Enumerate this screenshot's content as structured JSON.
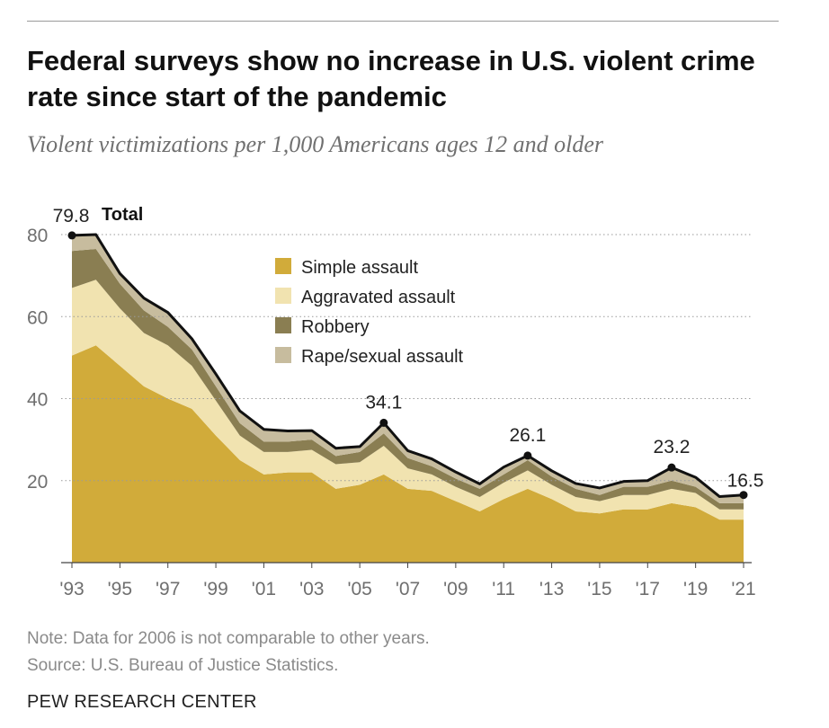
{
  "title": "Federal surveys show no increase in U.S. violent crime rate since start of the pandemic",
  "subtitle": "Violent victimizations per 1,000 Americans ages 12 and older",
  "note": "Note: Data for 2006 is not comparable to other years.",
  "source": "Source: U.S. Bureau of Justice Statistics.",
  "brand": "PEW RESEARCH CENTER",
  "chart_data": {
    "type": "area",
    "stacked": true,
    "x": [
      1993,
      1994,
      1995,
      1996,
      1997,
      1998,
      1999,
      2000,
      2001,
      2002,
      2003,
      2004,
      2005,
      2006,
      2007,
      2008,
      2009,
      2010,
      2011,
      2012,
      2013,
      2014,
      2015,
      2016,
      2017,
      2018,
      2019,
      2020,
      2021
    ],
    "tick_labels": [
      "'93",
      "'95",
      "'97",
      "'99",
      "'01",
      "'03",
      "'05",
      "'07",
      "'09",
      "'11",
      "'13",
      "'15",
      "'17",
      "'19",
      "'21"
    ],
    "tick_years": [
      1993,
      1995,
      1997,
      1999,
      2001,
      2003,
      2005,
      2007,
      2009,
      2011,
      2013,
      2015,
      2017,
      2019,
      2021
    ],
    "ylim": [
      0,
      80
    ],
    "y_ticks": [
      20,
      40,
      60,
      80
    ],
    "grid": "horizontal dotted",
    "legend_position": "top-center",
    "series": [
      {
        "name": "Simple assault",
        "color": "#d1ab3a",
        "values": [
          50.5,
          53.0,
          48.0,
          43.0,
          40.0,
          37.5,
          31.0,
          25.0,
          21.5,
          22.0,
          22.0,
          18.0,
          19.0,
          21.5,
          18.0,
          17.5,
          15.0,
          12.5,
          15.5,
          18.0,
          15.5,
          12.5,
          12.0,
          13.0,
          13.0,
          14.5,
          13.5,
          10.5,
          10.5
        ]
      },
      {
        "name": "Aggravated assault",
        "color": "#f1e3b0",
        "values": [
          16.5,
          16.0,
          14.0,
          13.0,
          13.0,
          10.5,
          8.5,
          6.0,
          5.5,
          5.0,
          5.5,
          6.0,
          5.5,
          7.0,
          5.0,
          4.0,
          3.5,
          3.5,
          4.0,
          4.5,
          3.5,
          3.5,
          3.0,
          3.5,
          3.5,
          3.5,
          3.5,
          2.5,
          2.5
        ]
      },
      {
        "name": "Robbery",
        "color": "#8a7e52",
        "values": [
          9.0,
          7.5,
          6.0,
          5.5,
          4.5,
          4.0,
          3.5,
          3.0,
          2.5,
          2.5,
          2.5,
          2.0,
          2.5,
          3.0,
          2.5,
          2.0,
          2.0,
          2.0,
          2.0,
          2.5,
          2.0,
          2.0,
          1.5,
          2.0,
          2.0,
          2.0,
          1.5,
          1.5,
          1.5
        ]
      },
      {
        "name": "Rape/sexual assault",
        "color": "#c7bc9e",
        "values": [
          3.8,
          3.5,
          2.5,
          3.0,
          3.5,
          2.6,
          3.0,
          3.0,
          3.0,
          2.6,
          2.2,
          1.9,
          1.3,
          2.6,
          1.8,
          1.8,
          1.6,
          1.2,
          1.8,
          1.1,
          1.4,
          1.3,
          1.7,
          1.3,
          1.5,
          3.2,
          2.3,
          1.6,
          2.0
        ]
      }
    ],
    "total_series_name": "Total",
    "total": [
      79.8,
      80.0,
      70.5,
      64.5,
      61.0,
      54.6,
      46.0,
      37.0,
      32.5,
      32.1,
      32.2,
      27.9,
      28.3,
      34.1,
      27.3,
      25.3,
      22.1,
      19.2,
      23.3,
      26.1,
      22.4,
      19.3,
      18.2,
      19.8,
      20.0,
      23.2,
      20.8,
      16.1,
      16.5
    ],
    "data_labels": [
      {
        "year": 1993,
        "text": "79.8"
      },
      {
        "year": 2006,
        "text": "34.1"
      },
      {
        "year": 2012,
        "text": "26.1"
      },
      {
        "year": 2018,
        "text": "23.2"
      },
      {
        "year": 2021,
        "text": "16.5"
      }
    ]
  }
}
